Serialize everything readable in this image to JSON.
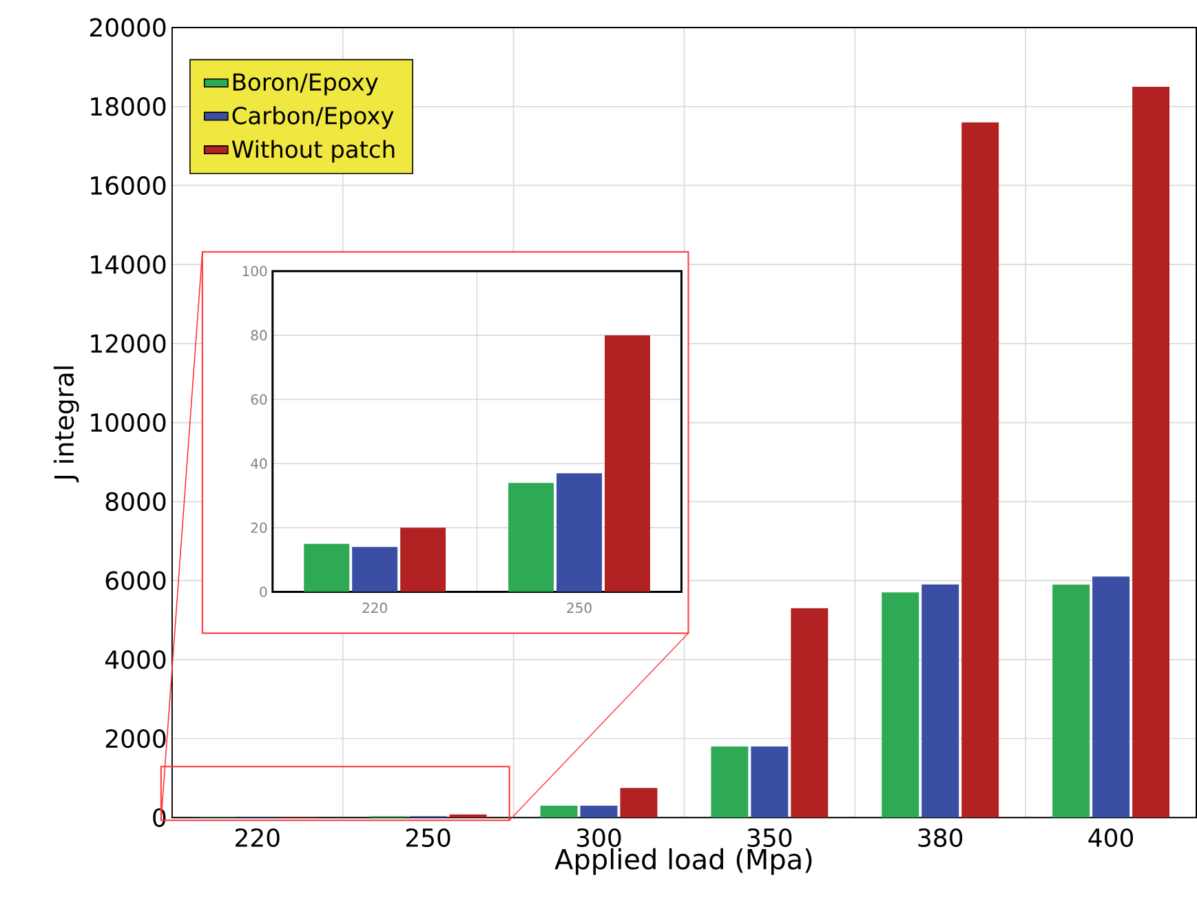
{
  "chart_data": [
    {
      "type": "bar",
      "xlabel": "Applied load (Mpa)",
      "ylabel": "J integral",
      "categories": [
        "220",
        "250",
        "300",
        "350",
        "380",
        "400"
      ],
      "series": [
        {
          "name": "Boron/Epoxy",
          "color": "#2eaa55",
          "values": [
            15,
            34,
            300,
            1800,
            5700,
            5900
          ]
        },
        {
          "name": "Carbon/Epoxy",
          "color": "#3a4fa3",
          "values": [
            14,
            37,
            300,
            1800,
            5900,
            6100
          ]
        },
        {
          "name": "Without patch",
          "color": "#b22222",
          "values": [
            20,
            80,
            750,
            5300,
            17600,
            18500
          ]
        }
      ],
      "ylim": [
        0,
        20000
      ],
      "yticks": [
        0,
        2000,
        4000,
        6000,
        8000,
        10000,
        12000,
        14000,
        16000,
        18000,
        20000
      ],
      "grid": true,
      "legend": "top left"
    },
    {
      "type": "bar",
      "categories": [
        "220",
        "250"
      ],
      "series": [
        {
          "color": "#2eaa55",
          "values": [
            15,
            34
          ]
        },
        {
          "color": "#3a4fa3",
          "values": [
            14,
            37
          ]
        },
        {
          "color": "#b22222",
          "values": [
            20,
            80
          ]
        }
      ],
      "ylim": [
        0,
        100
      ],
      "yticks": [
        0,
        20,
        40,
        60,
        80,
        100
      ],
      "grid": true
    }
  ]
}
